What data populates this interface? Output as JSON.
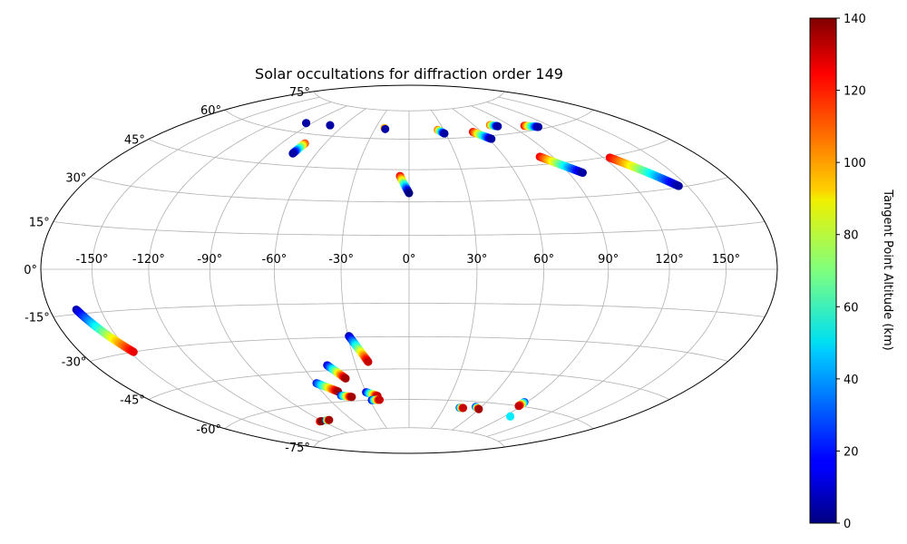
{
  "chart_data": {
    "type": "scatter",
    "projection": "hammer",
    "title": "Solar occultations for diffraction order 149",
    "grid": true,
    "lon_ticks": [
      "-150°",
      "-120°",
      "-90°",
      "-60°",
      "-30°",
      "0°",
      "30°",
      "60°",
      "90°",
      "120°",
      "150°"
    ],
    "lat_ticks": [
      "75°",
      "60°",
      "45°",
      "30°",
      "15°",
      "0°",
      "-15°",
      "-30°",
      "-45°",
      "-60°",
      "-75°"
    ],
    "colorbar": {
      "label": "Tangent Point Altitude (km)",
      "colormap": "jet",
      "range": [
        0,
        140
      ],
      "ticks": [
        "0",
        "20",
        "40",
        "60",
        "80",
        "100",
        "120",
        "140"
      ]
    },
    "tracks": [
      {
        "lon_start": -95,
        "lat_start": 64.5,
        "lon_end": -95,
        "lat_end": 64.5,
        "alt_start": 5,
        "alt_end": 5
      },
      {
        "lon_start": -72,
        "lat_start": 65,
        "lon_end": -72,
        "lat_end": 65,
        "alt_start": 5,
        "alt_end": 5
      },
      {
        "lon_start": -74,
        "lat_start": 55.5,
        "lon_end": -75,
        "lat_end": 50.5,
        "alt_start": 115,
        "alt_end": 5
      },
      {
        "lon_start": -22,
        "lat_start": 65.5,
        "lon_end": -21,
        "lat_end": 65,
        "alt_start": 100,
        "alt_end": 5
      },
      {
        "lon_start": -5,
        "lat_start": 42,
        "lon_end": 0,
        "lat_end": 34,
        "alt_start": 125,
        "alt_end": 0
      },
      {
        "lon_start": 25,
        "lat_start": 64.5,
        "lon_end": 29,
        "lat_end": 62.5,
        "alt_start": 110,
        "alt_end": 5
      },
      {
        "lon_start": 53,
        "lat_start": 62.5,
        "lon_end": 62,
        "lat_end": 58.5,
        "alt_start": 125,
        "alt_end": 5
      },
      {
        "lon_start": 74,
        "lat_start": 65,
        "lon_end": 79,
        "lat_end": 64,
        "alt_start": 110,
        "alt_end": 5
      },
      {
        "lon_start": 101,
        "lat_start": 62.5,
        "lon_end": 110,
        "lat_end": 61,
        "alt_start": 125,
        "alt_end": 5
      },
      {
        "lon_start": 82,
        "lat_start": 48.5,
        "lon_end": 98,
        "lat_end": 40,
        "alt_start": 125,
        "alt_end": 5
      },
      {
        "lon_start": 124,
        "lat_start": 44.5,
        "lon_end": 145,
        "lat_end": 30.5,
        "alt_start": 125,
        "alt_end": 5
      },
      {
        "lon_start": -164,
        "lat_start": -13.5,
        "lon_end": -148,
        "lat_end": -30,
        "alt_start": 5,
        "alt_end": 125
      },
      {
        "lon_start": -29.5,
        "lat_start": -29.5,
        "lon_end": -22.5,
        "lat_end": -41.5,
        "alt_start": 5,
        "alt_end": 130
      },
      {
        "lon_start": -46,
        "lat_start": -42.5,
        "lon_end": -39,
        "lat_end": -49,
        "alt_start": 10,
        "alt_end": 135
      },
      {
        "lon_start": -59,
        "lat_start": -50.5,
        "lon_end": -49,
        "lat_end": -55,
        "alt_start": 20,
        "alt_end": 135
      },
      {
        "lon_start": -49,
        "lat_start": -57,
        "lon_end": -42,
        "lat_end": -58,
        "alt_start": 20,
        "alt_end": 135
      },
      {
        "lon_start": -30,
        "lat_start": -56,
        "lon_end": -23,
        "lat_end": -58,
        "alt_start": 10,
        "alt_end": 130
      },
      {
        "lon_start": -28.5,
        "lat_start": -60,
        "lon_end": -22.5,
        "lat_end": -60,
        "alt_start": 10,
        "alt_end": 130
      },
      {
        "lon_start": -93,
        "lat_start": -68,
        "lon_end": -91,
        "lat_end": -68,
        "alt_start": 120,
        "alt_end": 140
      },
      {
        "lon_start": -85,
        "lat_start": -68,
        "lon_end": -82,
        "lat_end": -68,
        "alt_start": 40,
        "alt_end": 135
      },
      {
        "lon_start": 43,
        "lat_start": -63.5,
        "lon_end": 46,
        "lat_end": -63.5,
        "alt_start": 25,
        "alt_end": 130
      },
      {
        "lon_start": 55.5,
        "lat_start": -62.5,
        "lon_end": 60,
        "lat_end": -63.5,
        "alt_start": 20,
        "alt_end": 135
      },
      {
        "lon_start": 88,
        "lat_start": -58,
        "lon_end": 88,
        "lat_end": -60,
        "alt_start": 25,
        "alt_end": 130
      },
      {
        "lon_start": 95,
        "lat_start": -65,
        "lon_end": 95,
        "lat_end": -65,
        "alt_start": 50,
        "alt_end": 50
      }
    ]
  }
}
